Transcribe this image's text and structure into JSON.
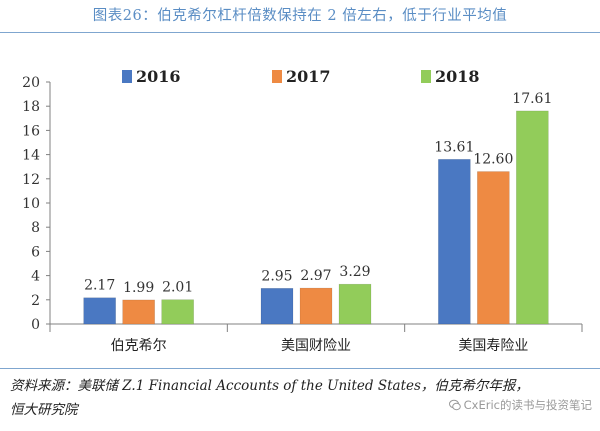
{
  "title": "图表26：伯克希尔杠杆倍数保持在 2 倍左右，低于行业平均值",
  "chart_data": {
    "type": "bar",
    "categories": [
      "伯克希尔",
      "美国财险业",
      "美国寿险业"
    ],
    "series": [
      {
        "name": "2016",
        "values": [
          2.17,
          2.95,
          13.61
        ],
        "color": "#4a78c2"
      },
      {
        "name": "2017",
        "values": [
          1.99,
          2.97,
          12.6
        ],
        "color": "#ee8a43"
      },
      {
        "name": "2018",
        "values": [
          2.01,
          3.29,
          17.61
        ],
        "color": "#92cc5a"
      }
    ],
    "data_labels": [
      [
        "2.17",
        "1.99",
        "2.01"
      ],
      [
        "2.95",
        "2.97",
        "3.29"
      ],
      [
        "13.61",
        "12.60",
        "17.61"
      ]
    ],
    "yticks": [
      "0",
      "2",
      "4",
      "6",
      "8",
      "10",
      "12",
      "14",
      "16",
      "18",
      "20"
    ],
    "ylim": [
      0,
      20
    ],
    "grid": false,
    "legend": "top"
  },
  "source": {
    "line1": "资料来源：美联储 Z.1 Financial Accounts of the United States，伯克希尔年报，",
    "line2": "恒大研究院"
  },
  "watermark": "CxEric的读书与投资笔记"
}
